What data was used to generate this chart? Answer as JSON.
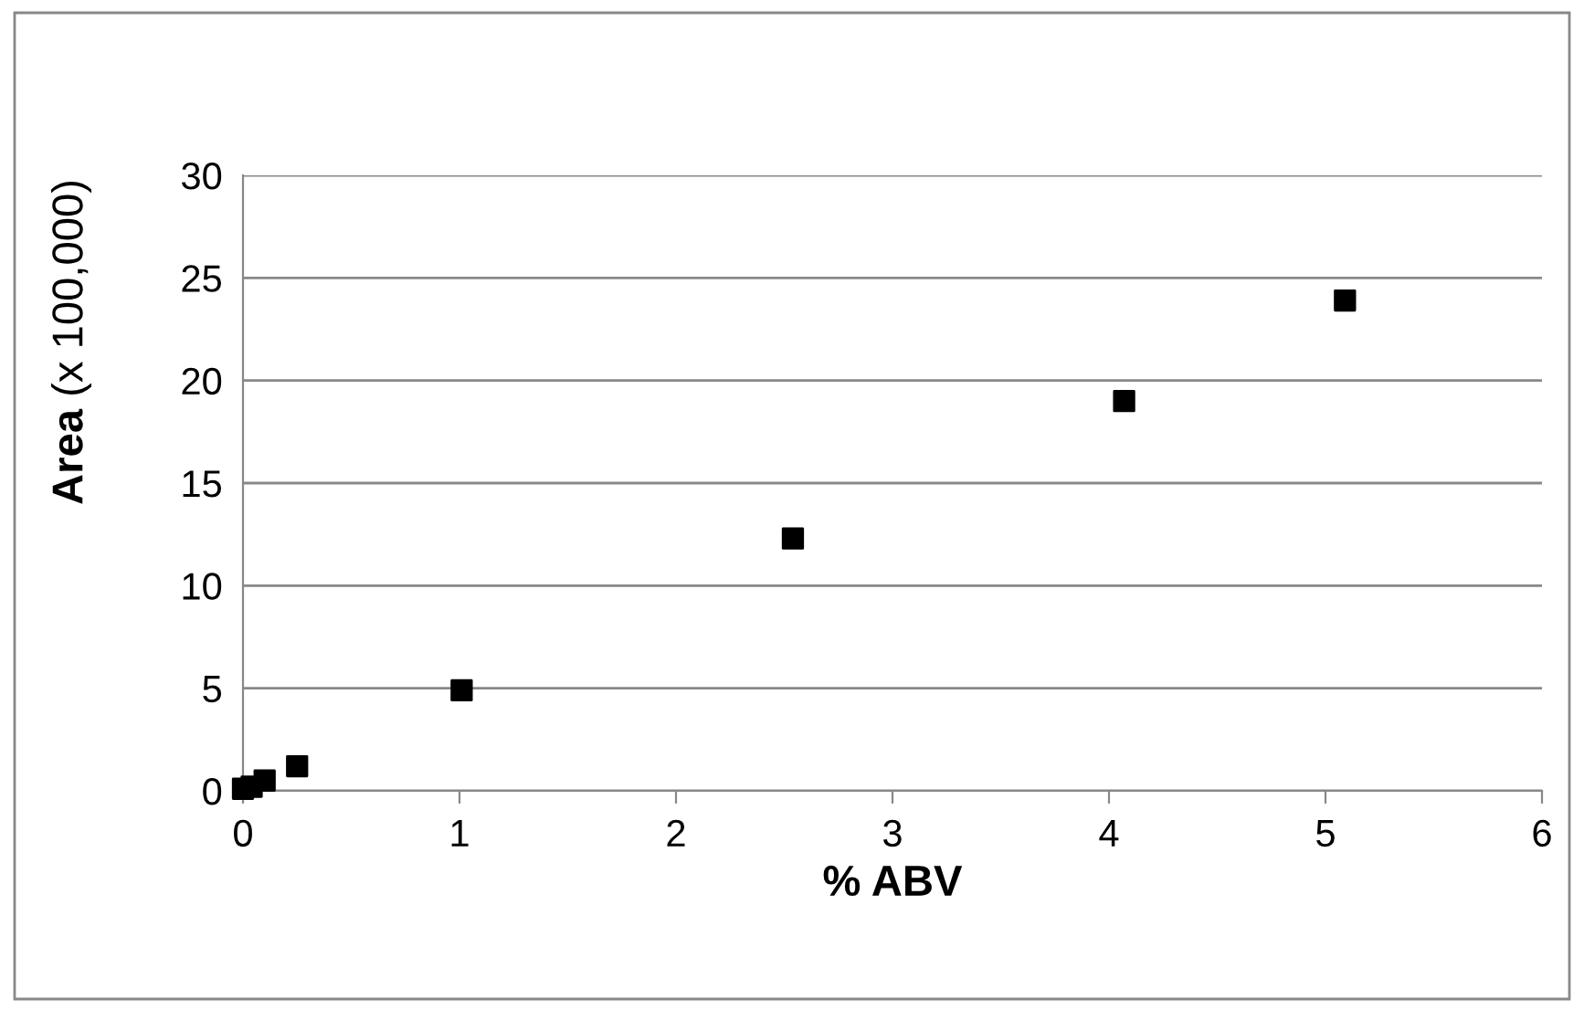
{
  "chart_data": {
    "type": "scatter",
    "xlabel": "% ABV",
    "ylabel": "Area (x 100,000)",
    "x": [
      0.0,
      0.04,
      0.1,
      0.25,
      1.01,
      2.54,
      4.07,
      5.09
    ],
    "series": [
      {
        "color": "#000000",
        "values": [
          0.1,
          0.2,
          0.5,
          1.2,
          4.9,
          12.3,
          19.0,
          23.9
        ]
      }
    ],
    "xlim": [
      0,
      6
    ],
    "xticks": [
      0,
      1,
      2,
      3,
      4,
      5,
      6
    ],
    "ylim": [
      0,
      30
    ],
    "yticks": [
      0,
      5,
      10,
      15,
      20,
      25,
      30
    ],
    "grid": "y",
    "marker": "square",
    "legend": false
  }
}
